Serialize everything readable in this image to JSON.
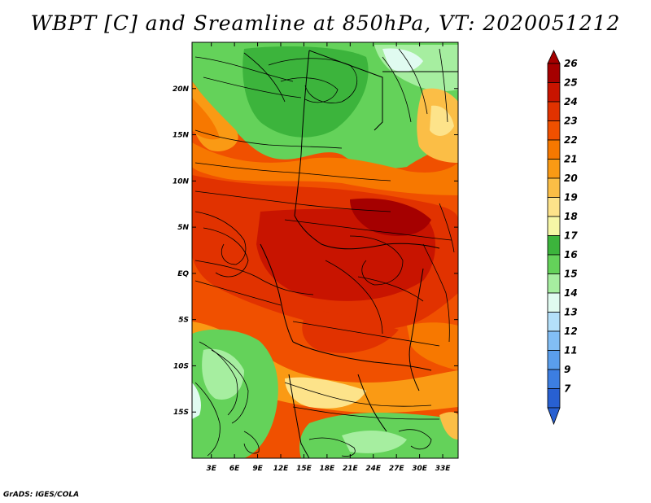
{
  "title": "WBPT [C] and Sreamline at 850hPa, VT: 2020051212",
  "credit": "GrADS: IGES/COLA",
  "map": {
    "lat_labels": [
      {
        "value": 20,
        "text": "20N"
      },
      {
        "value": 15,
        "text": "15N"
      },
      {
        "value": 10,
        "text": "10N"
      },
      {
        "value": 5,
        "text": "5N"
      },
      {
        "value": 0,
        "text": "EQ"
      },
      {
        "value": -5,
        "text": "5S"
      },
      {
        "value": -10,
        "text": "10S"
      },
      {
        "value": -15,
        "text": "15S"
      }
    ],
    "lon_labels": [
      {
        "value": 3,
        "text": "3E"
      },
      {
        "value": 6,
        "text": "6E"
      },
      {
        "value": 9,
        "text": "9E"
      },
      {
        "value": 12,
        "text": "12E"
      },
      {
        "value": 15,
        "text": "15E"
      },
      {
        "value": 18,
        "text": "18E"
      },
      {
        "value": 21,
        "text": "21E"
      },
      {
        "value": 24,
        "text": "24E"
      },
      {
        "value": 27,
        "text": "27E"
      },
      {
        "value": 30,
        "text": "30E"
      },
      {
        "value": 33,
        "text": "33E"
      }
    ],
    "lon_range": [
      0.5,
      35
    ],
    "lat_range": [
      -20,
      25
    ],
    "fields": {
      "variable": "WBPT",
      "units": "C",
      "level": "850hPa",
      "valid_time": "2020051212",
      "overlay": "streamlines"
    }
  },
  "colorbar": {
    "levels": [
      "26",
      "25",
      "24",
      "23",
      "22",
      "21",
      "20",
      "19",
      "18",
      "17",
      "16",
      "15",
      "14",
      "13",
      "12",
      "11",
      "9",
      "7"
    ],
    "colors": [
      "#a50000",
      "#c81400",
      "#e13200",
      "#f05000",
      "#f77800",
      "#fa9a14",
      "#fbbe46",
      "#fde38a",
      "#f6f7a6",
      "#3cb43c",
      "#64d25a",
      "#a6eea0",
      "#e0fbf0",
      "#b4e0fa",
      "#82bef5",
      "#5a9eec",
      "#3c7ee1",
      "#2860d2"
    ],
    "top_arrow_color": "#a50000",
    "bottom_arrow_color": "#2860d2"
  }
}
